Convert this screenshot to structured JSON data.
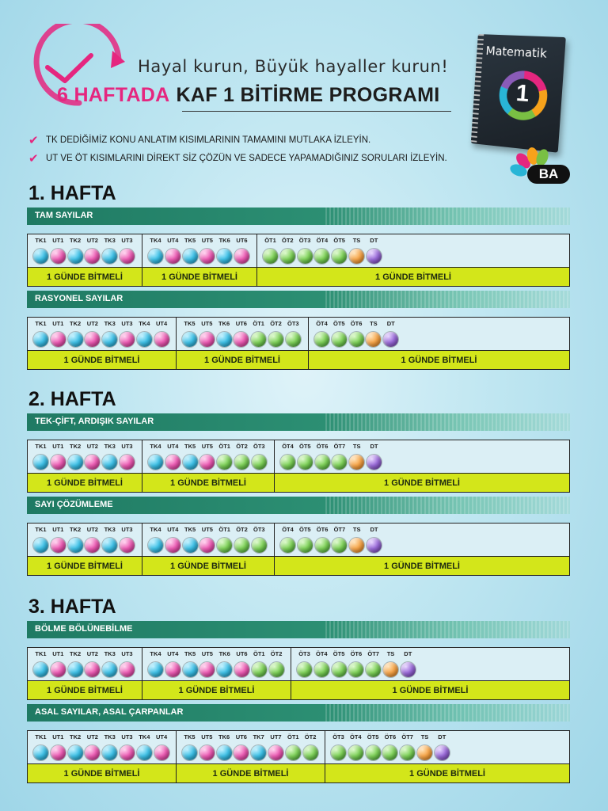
{
  "header": {
    "tagline": "Hayal kurun, Büyük hayaller kurun!",
    "title_highlight": "6 HAFTADA",
    "title_rest": "KAF 1 BİTİRME PROGRAMI",
    "notes": [
      "TK DEDİĞİMİZ KONU ANLATIM KISIMLARININ TAMAMINI MUTLAKA İZLEYİN.",
      "UT VE ÖT KISIMLARINI DİREKT SİZ ÇÖZÜN VE SADECE YAPAMADIĞINIZ SORULARI İZLEYİN."
    ],
    "book_title": "Matematik",
    "book_number": "1",
    "brand": "BA"
  },
  "colors": {
    "pink": "#e5267f",
    "topic_green": "#1f7a63",
    "done_bar": "#d3e61a"
  },
  "weeks": [
    {
      "title": "1. HAFTA",
      "topics": [
        {
          "name": "TAM SAYILAR",
          "segments": [
            {
              "items": [
                [
                  "TK1",
                  "blue"
                ],
                [
                  "UT1",
                  "pink"
                ],
                [
                  "TK2",
                  "blue"
                ],
                [
                  "UT2",
                  "pink"
                ],
                [
                  "TK3",
                  "blue"
                ],
                [
                  "UT3",
                  "pink"
                ]
              ],
              "label": "1 GÜNDE BİTMELİ"
            },
            {
              "items": [
                [
                  "TK4",
                  "blue"
                ],
                [
                  "UT4",
                  "pink"
                ],
                [
                  "TK5",
                  "blue"
                ],
                [
                  "UT5",
                  "pink"
                ],
                [
                  "TK6",
                  "blue"
                ],
                [
                  "UT6",
                  "pink"
                ]
              ],
              "label": "1 GÜNDE BİTMELİ"
            },
            {
              "items": [
                [
                  "ÖT1",
                  "green"
                ],
                [
                  "ÖT2",
                  "green"
                ],
                [
                  "ÖT3",
                  "green"
                ],
                [
                  "ÖT4",
                  "green"
                ],
                [
                  "ÖT5",
                  "green"
                ],
                [
                  "TS",
                  "orange"
                ],
                [
                  "DT",
                  "purple"
                ]
              ],
              "label": "1 GÜNDE BİTMELİ"
            }
          ]
        },
        {
          "name": "RASYONEL SAYILAR",
          "segments": [
            {
              "items": [
                [
                  "TK1",
                  "blue"
                ],
                [
                  "UT1",
                  "pink"
                ],
                [
                  "TK2",
                  "blue"
                ],
                [
                  "UT2",
                  "pink"
                ],
                [
                  "TK3",
                  "blue"
                ],
                [
                  "UT3",
                  "pink"
                ],
                [
                  "TK4",
                  "blue"
                ],
                [
                  "UT4",
                  "pink"
                ]
              ],
              "label": "1 GÜNDE BİTMELİ"
            },
            {
              "items": [
                [
                  "TK5",
                  "blue"
                ],
                [
                  "UT5",
                  "pink"
                ],
                [
                  "TK6",
                  "blue"
                ],
                [
                  "UT6",
                  "pink"
                ],
                [
                  "ÖT1",
                  "green"
                ],
                [
                  "ÖT2",
                  "green"
                ],
                [
                  "ÖT3",
                  "green"
                ]
              ],
              "label": "1 GÜNDE BİTMELİ"
            },
            {
              "items": [
                [
                  "ÖT4",
                  "green"
                ],
                [
                  "ÖT5",
                  "green"
                ],
                [
                  "ÖT6",
                  "green"
                ],
                [
                  "TS",
                  "orange"
                ],
                [
                  "DT",
                  "purple"
                ]
              ],
              "label": "1 GÜNDE BİTMELİ"
            }
          ]
        }
      ]
    },
    {
      "title": "2. HAFTA",
      "topics": [
        {
          "name": "TEK-ÇİFT, ARDIŞIK SAYILAR",
          "segments": [
            {
              "items": [
                [
                  "TK1",
                  "blue"
                ],
                [
                  "UT1",
                  "pink"
                ],
                [
                  "TK2",
                  "blue"
                ],
                [
                  "UT2",
                  "pink"
                ],
                [
                  "TK3",
                  "blue"
                ],
                [
                  "UT3",
                  "pink"
                ]
              ],
              "label": "1 GÜNDE BİTMELİ"
            },
            {
              "items": [
                [
                  "TK4",
                  "blue"
                ],
                [
                  "UT4",
                  "pink"
                ],
                [
                  "TK5",
                  "blue"
                ],
                [
                  "UT5",
                  "pink"
                ],
                [
                  "ÖT1",
                  "green"
                ],
                [
                  "ÖT2",
                  "green"
                ],
                [
                  "ÖT3",
                  "green"
                ]
              ],
              "label": "1 GÜNDE BİTMELİ"
            },
            {
              "items": [
                [
                  "ÖT4",
                  "green"
                ],
                [
                  "ÖT5",
                  "green"
                ],
                [
                  "ÖT6",
                  "green"
                ],
                [
                  "ÖT7",
                  "green"
                ],
                [
                  "TS",
                  "orange"
                ],
                [
                  "DT",
                  "purple"
                ]
              ],
              "label": "1 GÜNDE BİTMELİ"
            }
          ]
        },
        {
          "name": "SAYI ÇÖZÜMLEME",
          "segments": [
            {
              "items": [
                [
                  "TK1",
                  "blue"
                ],
                [
                  "UT1",
                  "pink"
                ],
                [
                  "TK2",
                  "blue"
                ],
                [
                  "UT2",
                  "pink"
                ],
                [
                  "TK3",
                  "blue"
                ],
                [
                  "UT3",
                  "pink"
                ]
              ],
              "label": "1 GÜNDE BİTMELİ"
            },
            {
              "items": [
                [
                  "TK4",
                  "blue"
                ],
                [
                  "UT4",
                  "pink"
                ],
                [
                  "TK5",
                  "blue"
                ],
                [
                  "UT5",
                  "pink"
                ],
                [
                  "ÖT1",
                  "green"
                ],
                [
                  "ÖT2",
                  "green"
                ],
                [
                  "ÖT3",
                  "green"
                ]
              ],
              "label": "1 GÜNDE BİTMELİ"
            },
            {
              "items": [
                [
                  "ÖT4",
                  "green"
                ],
                [
                  "ÖT5",
                  "green"
                ],
                [
                  "ÖT6",
                  "green"
                ],
                [
                  "ÖT7",
                  "green"
                ],
                [
                  "TS",
                  "orange"
                ],
                [
                  "DT",
                  "purple"
                ]
              ],
              "label": "1 GÜNDE BİTMELİ"
            }
          ]
        }
      ]
    },
    {
      "title": "3. HAFTA",
      "topics": [
        {
          "name": "BÖLME BÖLÜNEBİLME",
          "segments": [
            {
              "items": [
                [
                  "TK1",
                  "blue"
                ],
                [
                  "UT1",
                  "pink"
                ],
                [
                  "TK2",
                  "blue"
                ],
                [
                  "UT2",
                  "pink"
                ],
                [
                  "TK3",
                  "blue"
                ],
                [
                  "UT3",
                  "pink"
                ]
              ],
              "label": "1 GÜNDE BİTMELİ"
            },
            {
              "items": [
                [
                  "TK4",
                  "blue"
                ],
                [
                  "UT4",
                  "pink"
                ],
                [
                  "TK5",
                  "blue"
                ],
                [
                  "UT5",
                  "pink"
                ],
                [
                  "TK6",
                  "blue"
                ],
                [
                  "UT6",
                  "pink"
                ],
                [
                  "ÖT1",
                  "green"
                ],
                [
                  "ÖT2",
                  "green"
                ]
              ],
              "label": "1 GÜNDE BİTMELİ"
            },
            {
              "items": [
                [
                  "ÖT3",
                  "green"
                ],
                [
                  "ÖT4",
                  "green"
                ],
                [
                  "ÖT5",
                  "green"
                ],
                [
                  "ÖT6",
                  "green"
                ],
                [
                  "ÖT7",
                  "green"
                ],
                [
                  "TS",
                  "orange"
                ],
                [
                  "DT",
                  "purple"
                ]
              ],
              "label": "1 GÜNDE BİTMELİ"
            }
          ]
        },
        {
          "name": "ASAL SAYILAR, ASAL ÇARPANLAR",
          "segments": [
            {
              "items": [
                [
                  "TK1",
                  "blue"
                ],
                [
                  "UT1",
                  "pink"
                ],
                [
                  "TK2",
                  "blue"
                ],
                [
                  "UT2",
                  "pink"
                ],
                [
                  "TK3",
                  "blue"
                ],
                [
                  "UT3",
                  "pink"
                ],
                [
                  "TK4",
                  "blue"
                ],
                [
                  "UT4",
                  "pink"
                ]
              ],
              "label": "1 GÜNDE BİTMELİ"
            },
            {
              "items": [
                [
                  "TK5",
                  "blue"
                ],
                [
                  "UT5",
                  "pink"
                ],
                [
                  "TK6",
                  "blue"
                ],
                [
                  "UT6",
                  "pink"
                ],
                [
                  "TK7",
                  "blue"
                ],
                [
                  "UT7",
                  "pink"
                ],
                [
                  "ÖT1",
                  "green"
                ],
                [
                  "ÖT2",
                  "green"
                ]
              ],
              "label": "1 GÜNDE BİTMELİ"
            },
            {
              "items": [
                [
                  "ÖT3",
                  "green"
                ],
                [
                  "ÖT4",
                  "green"
                ],
                [
                  "ÖT5",
                  "green"
                ],
                [
                  "ÖT6",
                  "green"
                ],
                [
                  "ÖT7",
                  "green"
                ],
                [
                  "TS",
                  "orange"
                ],
                [
                  "DT",
                  "purple"
                ]
              ],
              "label": "1 GÜNDE BİTMELİ"
            }
          ]
        }
      ]
    }
  ]
}
